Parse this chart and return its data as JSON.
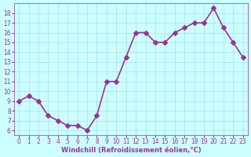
{
  "x": [
    0,
    1,
    2,
    3,
    4,
    5,
    6,
    7,
    8,
    9,
    10,
    11,
    12,
    13,
    14,
    15,
    16,
    17,
    18,
    19,
    20,
    21,
    22,
    23
  ],
  "y": [
    9,
    9.5,
    9,
    7.5,
    7,
    6.5,
    6.5,
    6,
    7.5,
    11,
    11,
    13.5,
    16,
    16,
    15,
    15,
    16,
    16.5,
    17,
    17,
    18.5,
    16.5,
    15,
    13.5
  ],
  "line_color": "#993399",
  "marker": "D",
  "marker_size": 3,
  "background_color": "#ccffff",
  "grid_color": "#aadddd",
  "xlabel": "Windchill (Refroidissement éolien,°C)",
  "xlabel_color": "#993399",
  "tick_color": "#993399",
  "ylim": [
    5.5,
    19
  ],
  "xlim": [
    -0.5,
    23.5
  ],
  "yticks": [
    6,
    7,
    8,
    9,
    10,
    11,
    12,
    13,
    14,
    15,
    16,
    17,
    18
  ],
  "xticks": [
    0,
    1,
    2,
    3,
    4,
    5,
    6,
    7,
    8,
    9,
    10,
    11,
    12,
    13,
    14,
    15,
    16,
    17,
    18,
    19,
    20,
    21,
    22,
    23
  ],
  "xtick_labels": [
    "0",
    "1",
    "2",
    "3",
    "4",
    "5",
    "6",
    "7",
    "8",
    "9",
    "10",
    "11",
    "12",
    "13",
    "14",
    "15",
    "16",
    "17",
    "18",
    "19",
    "20",
    "21",
    "22",
    "23"
  ],
  "line_width": 1.2,
  "fig_width": 3.2,
  "fig_height": 2.0,
  "dpi": 100
}
